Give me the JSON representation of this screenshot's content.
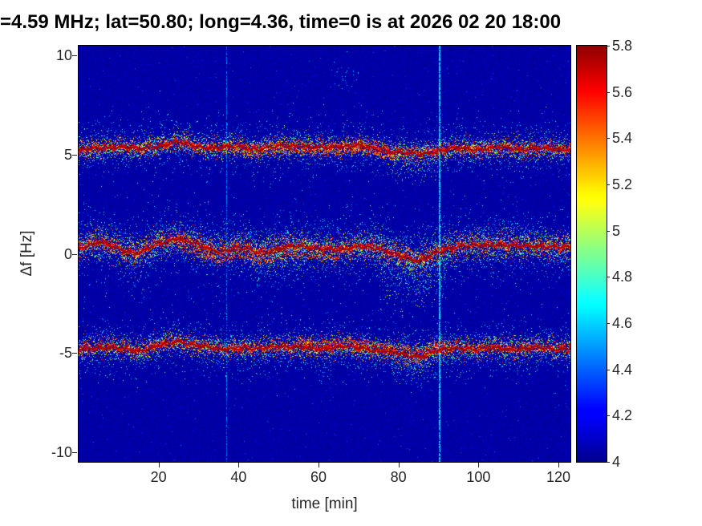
{
  "chart_data": {
    "type": "heatmap",
    "title": "=4.59 MHz;  lat=50.80; long=4.36, time=0 is at 2026 02 20 18:00",
    "xlabel": "time [min]",
    "ylabel": "Δf [Hz]",
    "xlim": [
      0,
      123
    ],
    "ylim": [
      -10.5,
      10.5
    ],
    "clim": [
      4,
      5.8
    ],
    "colormap": "jet",
    "seed": 42,
    "xticks": [
      {
        "v": 20,
        "label": "20"
      },
      {
        "v": 40,
        "label": "40"
      },
      {
        "v": 60,
        "label": "60"
      },
      {
        "v": 80,
        "label": "80"
      },
      {
        "v": 100,
        "label": "100"
      },
      {
        "v": 120,
        "label": "120"
      }
    ],
    "yticks": [
      {
        "v": -10,
        "label": "-10"
      },
      {
        "v": -5,
        "label": "-5"
      },
      {
        "v": 0,
        "label": "0"
      },
      {
        "v": 5,
        "label": "5"
      },
      {
        "v": 10,
        "label": "10"
      }
    ],
    "colorbar_ticks": [
      {
        "v": 5.8,
        "label": "5.8"
      },
      {
        "v": 5.6,
        "label": "5.6"
      },
      {
        "v": 5.4,
        "label": "5.4"
      },
      {
        "v": 5.2,
        "label": "5.2"
      },
      {
        "v": 5.0,
        "label": "5"
      },
      {
        "v": 4.8,
        "label": "4.8"
      },
      {
        "v": 4.6,
        "label": "4.6"
      },
      {
        "v": 4.4,
        "label": "4.4"
      },
      {
        "v": 4.2,
        "label": "4.2"
      },
      {
        "v": 4.0,
        "label": "4"
      }
    ],
    "background": {
      "base": 4.0,
      "noise": 0.08,
      "sparkle_prob": 0.004,
      "sparkle_min": 4.15,
      "sparkle_range": 0.3
    },
    "vertical_lines": [
      {
        "t": 37,
        "value": 4.42,
        "width": 1,
        "fill": 0.75
      },
      {
        "t": 90,
        "value": 4.58,
        "width": 2,
        "fill": 0.85
      }
    ],
    "scatter_clusters": [
      {
        "t": 67,
        "f": 8.9,
        "draws": 28,
        "sigma_t": 2.0,
        "sigma_f": 0.45,
        "value_min": 4.35,
        "value_range": 0.35
      }
    ],
    "bands": [
      {
        "name": "upper-doppler-trace",
        "dt_min": 5,
        "phase": 0.0,
        "centers": [
          5.25,
          5.35,
          5.45,
          5.3,
          5.5,
          5.65,
          5.45,
          5.35,
          5.45,
          5.3,
          5.45,
          5.5,
          5.35,
          5.45,
          5.5,
          5.3,
          5.15,
          5.05,
          5.25,
          5.35,
          5.3,
          5.4,
          5.3,
          5.35,
          5.3
        ],
        "core_draws": 6,
        "core_sigma": 0.09,
        "core_value_min": 5.45,
        "core_value_range": 0.35,
        "mid_draws": 9,
        "mid_sigma": 0.28,
        "mid_value_min": 4.7,
        "mid_value_range": 1.0,
        "outer_draws": 4,
        "outer_sigma": 0.7,
        "outer_value_min": 4.25,
        "outer_value_range": 0.65,
        "secondary": {
          "offset": -0.28,
          "t_range": [
            38,
            80
          ],
          "draws": 3
        },
        "tails": [
          {
            "t_range": [
              78,
              90
            ],
            "bias": -0.4,
            "sigma": 0.5,
            "draws": 3,
            "value_min": 4.3,
            "value_range": 0.9
          }
        ]
      },
      {
        "name": "middle-doppler-trace",
        "dt_min": 5,
        "phase": 2.1,
        "centers": [
          0.35,
          0.6,
          0.3,
          0.05,
          0.55,
          0.85,
          0.45,
          0.15,
          0.35,
          0.1,
          0.25,
          0.45,
          0.3,
          0.2,
          0.45,
          0.25,
          0.0,
          -0.35,
          0.15,
          0.4,
          0.45,
          0.5,
          0.4,
          0.45,
          0.35
        ],
        "core_draws": 6,
        "core_sigma": 0.1,
        "core_value_min": 5.45,
        "core_value_range": 0.35,
        "mid_draws": 11,
        "mid_sigma": 0.38,
        "mid_value_min": 4.7,
        "mid_value_range": 1.0,
        "outer_draws": 6,
        "outer_sigma": 0.95,
        "outer_value_min": 4.25,
        "outer_value_range": 0.65,
        "secondary": {
          "offset": -0.45,
          "t_range": [
            25,
            65
          ],
          "draws": 3
        },
        "tails": [
          {
            "t_range": [
              75,
              92
            ],
            "bias": -1.0,
            "sigma": 0.8,
            "draws": 5,
            "value_min": 4.3,
            "value_range": 0.9
          },
          {
            "t_range": [
              43,
              57
            ],
            "bias": -0.6,
            "sigma": 0.6,
            "draws": 3,
            "value_min": 4.3,
            "value_range": 0.8
          }
        ]
      },
      {
        "name": "lower-doppler-trace",
        "dt_min": 5,
        "phase": 4.2,
        "centers": [
          -4.8,
          -4.65,
          -4.75,
          -4.85,
          -4.6,
          -4.4,
          -4.6,
          -4.8,
          -4.7,
          -4.8,
          -4.6,
          -4.7,
          -4.75,
          -4.65,
          -4.7,
          -4.85,
          -5.0,
          -5.15,
          -4.85,
          -4.7,
          -4.8,
          -4.7,
          -4.8,
          -4.7,
          -4.75
        ],
        "core_draws": 6,
        "core_sigma": 0.09,
        "core_value_min": 5.45,
        "core_value_range": 0.35,
        "mid_draws": 9,
        "mid_sigma": 0.3,
        "mid_value_min": 4.7,
        "mid_value_range": 1.0,
        "outer_draws": 4,
        "outer_sigma": 0.75,
        "outer_value_min": 4.25,
        "outer_value_range": 0.65,
        "secondary": {
          "offset": 0.28,
          "t_range": [
            55,
            95
          ],
          "draws": 3
        },
        "tails": [
          {
            "t_range": [
              78,
              92
            ],
            "bias": -0.5,
            "sigma": 0.5,
            "draws": 3,
            "value_min": 4.3,
            "value_range": 0.9
          }
        ]
      }
    ]
  }
}
